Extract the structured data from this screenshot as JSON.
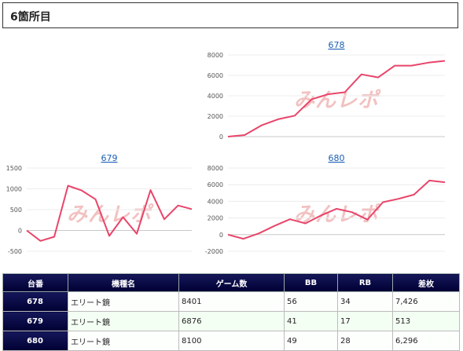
{
  "header": {
    "title": "6箇所目"
  },
  "watermark": "みんレポ",
  "line_color": "#e8456a",
  "chart_data": [
    {
      "type": "line",
      "title": "678",
      "y_ticks": [
        0,
        2000,
        4000,
        6000,
        8000
      ],
      "ylim": [
        0,
        8000
      ],
      "values": [
        0,
        150,
        1100,
        1700,
        2050,
        3650,
        4150,
        4350,
        6100,
        5800,
        6950,
        6950,
        7250,
        7426
      ]
    },
    {
      "type": "line",
      "title": "679",
      "y_ticks": [
        -500,
        0,
        500,
        1000,
        1500
      ],
      "ylim": [
        -500,
        1500
      ],
      "values": [
        0,
        -250,
        -150,
        1075,
        960,
        750,
        -130,
        320,
        -80,
        970,
        270,
        600,
        513
      ]
    },
    {
      "type": "line",
      "title": "680",
      "y_ticks": [
        -2000,
        0,
        2000,
        4000,
        6000,
        8000
      ],
      "ylim": [
        -2000,
        8000
      ],
      "values": [
        0,
        -500,
        150,
        1050,
        1850,
        1350,
        2300,
        3100,
        2700,
        1800,
        3900,
        4300,
        4800,
        6500,
        6296
      ]
    }
  ],
  "table": {
    "headers": [
      "台番",
      "機種名",
      "ゲーム数",
      "BB",
      "RB",
      "差枚"
    ],
    "rows": [
      [
        "678",
        "エリート鏡",
        "8401",
        "56",
        "34",
        "7,426"
      ],
      [
        "679",
        "エリート鏡",
        "6876",
        "41",
        "17",
        "513"
      ],
      [
        "680",
        "エリート鏡",
        "8100",
        "49",
        "28",
        "6,296"
      ]
    ]
  }
}
